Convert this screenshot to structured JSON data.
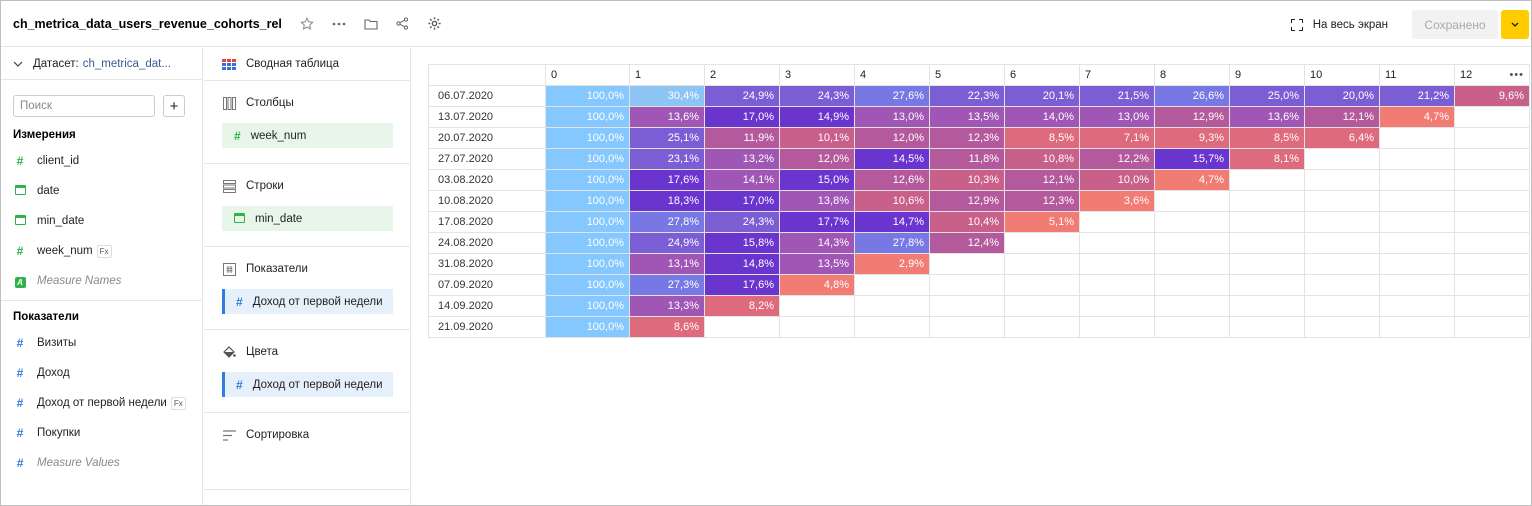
{
  "header": {
    "title": "ch_metrica_data_users_revenue_cohorts_rel",
    "fullscreen_label": "На весь экран",
    "saved_label": "Сохранено",
    "icons": [
      "star-icon",
      "more-icon",
      "folder-icon",
      "share-icon",
      "gear-icon"
    ]
  },
  "dataset": {
    "label": "Датасет:",
    "name": "ch_metrica_dat..."
  },
  "search": {
    "placeholder": "Поиск"
  },
  "dimensions": {
    "title": "Измерения",
    "items": [
      {
        "label": "client_id",
        "icon": "number-icon"
      },
      {
        "label": "date",
        "icon": "calendar-icon"
      },
      {
        "label": "min_date",
        "icon": "calendar-icon"
      },
      {
        "label": "week_num",
        "icon": "number-icon",
        "fx": "Fx"
      },
      {
        "label": "Measure Names",
        "icon": "text-icon",
        "badge": "A"
      }
    ]
  },
  "measures": {
    "title": "Показатели",
    "items": [
      {
        "label": "Визиты"
      },
      {
        "label": "Доход"
      },
      {
        "label": "Доход от первой недели",
        "fx": "Fx"
      },
      {
        "label": "Покупки"
      },
      {
        "label": "Measure Values"
      }
    ]
  },
  "config": {
    "viz_type": "Сводная таблица",
    "columns": {
      "title": "Столбцы",
      "field": "week_num"
    },
    "rows": {
      "title": "Строки",
      "field": "min_date"
    },
    "measures": {
      "title": "Показатели",
      "field": "Доход от первой недели"
    },
    "colors": {
      "title": "Цвета",
      "field": "Доход от первой недели"
    },
    "sort": {
      "title": "Сортировка"
    }
  },
  "table": {
    "columns": [
      "0",
      "1",
      "2",
      "3",
      "4",
      "5",
      "6",
      "7",
      "8",
      "9",
      "10",
      "11",
      "12"
    ],
    "more": "•••",
    "rows": [
      {
        "label": "06.07.2020",
        "values": [
          "100,0%",
          "30,4%",
          "24,9%",
          "24,3%",
          "27,6%",
          "22,3%",
          "20,1%",
          "21,5%",
          "26,6%",
          "25,0%",
          "20,0%",
          "21,2%",
          "9,6%"
        ]
      },
      {
        "label": "13.07.2020",
        "values": [
          "100,0%",
          "13,6%",
          "17,0%",
          "14,9%",
          "13,0%",
          "13,5%",
          "14,0%",
          "13,0%",
          "12,9%",
          "13,6%",
          "12,1%",
          "4,7%"
        ]
      },
      {
        "label": "20.07.2020",
        "values": [
          "100,0%",
          "25,1%",
          "11,9%",
          "10,1%",
          "12,0%",
          "12,3%",
          "8,5%",
          "7,1%",
          "9,3%",
          "8,5%",
          "6,4%"
        ]
      },
      {
        "label": "27.07.2020",
        "values": [
          "100,0%",
          "23,1%",
          "13,2%",
          "12,0%",
          "14,5%",
          "11,8%",
          "10,8%",
          "12,2%",
          "15,7%",
          "8,1%"
        ]
      },
      {
        "label": "03.08.2020",
        "values": [
          "100,0%",
          "17,6%",
          "14,1%",
          "15,0%",
          "12,6%",
          "10,3%",
          "12,1%",
          "10,0%",
          "4,7%"
        ]
      },
      {
        "label": "10.08.2020",
        "values": [
          "100,0%",
          "18,3%",
          "17,0%",
          "13,8%",
          "10,6%",
          "12,9%",
          "12,3%",
          "3,6%"
        ]
      },
      {
        "label": "17.08.2020",
        "values": [
          "100,0%",
          "27,8%",
          "24,3%",
          "17,7%",
          "14,7%",
          "10,4%",
          "5,1%"
        ]
      },
      {
        "label": "24.08.2020",
        "values": [
          "100,0%",
          "24,9%",
          "15,8%",
          "14,3%",
          "27,8%",
          "12,4%"
        ]
      },
      {
        "label": "31.08.2020",
        "values": [
          "100,0%",
          "13,1%",
          "14,8%",
          "13,5%",
          "2,9%"
        ]
      },
      {
        "label": "07.09.2020",
        "values": [
          "100,0%",
          "27,3%",
          "17,6%",
          "4,8%"
        ]
      },
      {
        "label": "14.09.2020",
        "values": [
          "100,0%",
          "13,3%",
          "8,2%"
        ]
      },
      {
        "label": "21.09.2020",
        "values": [
          "100,0%",
          "8,6%"
        ]
      }
    ],
    "colors": {
      "c100": "#85c8ff",
      "c30": "#8cc4f4",
      "c27": "#7878e4",
      "c24": "#7c5ed4",
      "c15": "#6a34cf",
      "c13": "#a056b4",
      "c12": "#b45a9c",
      "c10": "#c8608a",
      "c8": "#de6a7e",
      "c5": "#f07c74"
    }
  }
}
